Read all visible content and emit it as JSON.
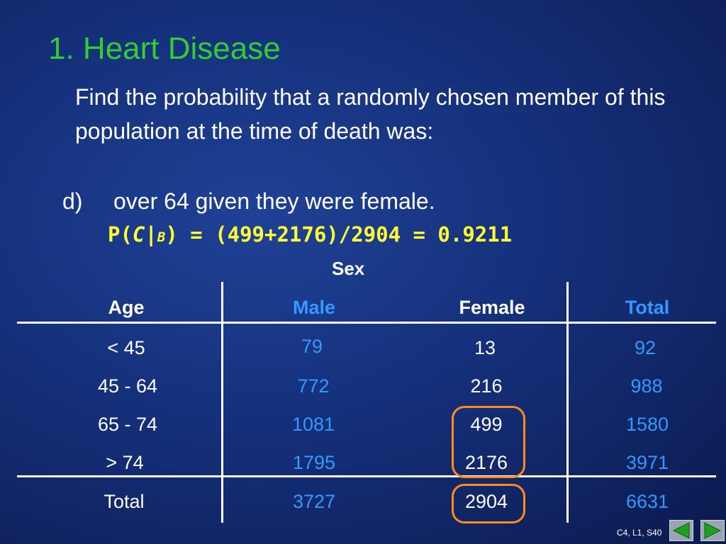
{
  "slide": {
    "title": "1.  Heart Disease",
    "prompt": "Find the probability that a randomly chosen member of this population at the time of death was:",
    "question_letter": "d)",
    "question_text": "over 64 given they were female.",
    "formula": {
      "prefix": "P(",
      "event": "C",
      "bar": "|",
      "given": "B",
      "rest": ") = (499+2176)/2904 = 0.9211"
    },
    "footer_ref": "C4, L1, S40"
  },
  "table": {
    "group_header": "Sex",
    "headers": {
      "age": "Age",
      "male": "Male",
      "female": "Female",
      "total": "Total"
    },
    "rows": [
      {
        "age": "< 45",
        "male": "79",
        "female": "13",
        "total": "92"
      },
      {
        "age": "45 - 64",
        "male": "772",
        "female": "216",
        "total": "988"
      },
      {
        "age": "65 - 74",
        "male": "1081",
        "female": "499",
        "total": "1580"
      },
      {
        "age": "> 74",
        "male": "1795",
        "female": "2176",
        "total": "3971"
      }
    ],
    "totals": {
      "age": "Total",
      "male": "3727",
      "female": "2904",
      "total": "6631"
    }
  },
  "colors": {
    "title": "#33cc33",
    "formula": "#ffff33",
    "male_total_values": "#3399ff",
    "highlight_ring": "#ff8c1a"
  },
  "navigation": {
    "prev_icon": "triangle-left-icon",
    "next_icon": "triangle-right-icon"
  }
}
